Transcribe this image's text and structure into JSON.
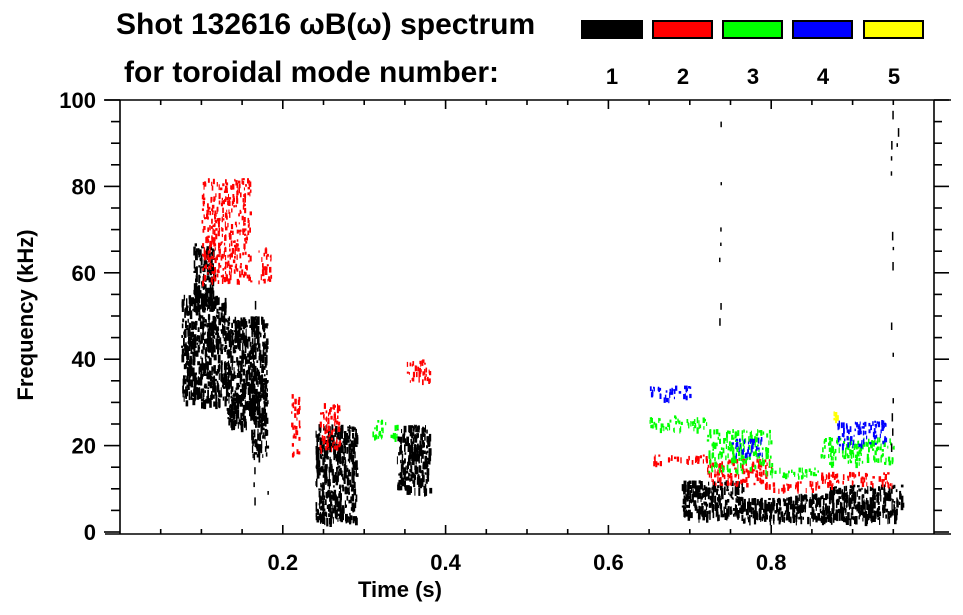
{
  "chart_data": {
    "type": "heatmap",
    "title": "Shot 132616 ωB(ω) spectrum",
    "subtitle": "for toroidal mode number:",
    "xlabel": "Time (s)",
    "ylabel": "Frequency (kHz)",
    "xlim": [
      0,
      1.0
    ],
    "ylim": [
      0,
      100
    ],
    "x_ticks": [
      0.2,
      0.4,
      0.6,
      0.8
    ],
    "x_tick_labels": [
      "0.2",
      "0.4",
      "0.6",
      "0.8"
    ],
    "x_minor_step": 0.05,
    "y_ticks": [
      0,
      20,
      40,
      60,
      80,
      100
    ],
    "y_tick_labels": [
      "0",
      "20",
      "40",
      "60",
      "80",
      "100"
    ],
    "y_minor_step": 5,
    "grid": false,
    "legend": {
      "placement": "top-right",
      "entries": [
        {
          "label": "1",
          "color": "#000000"
        },
        {
          "label": "2",
          "color": "#ff0000"
        },
        {
          "label": "3",
          "color": "#00ff00"
        },
        {
          "label": "4",
          "color": "#0000ff"
        },
        {
          "label": "5",
          "color": "#ffff00"
        }
      ]
    },
    "features": [
      {
        "mode": 1,
        "t0": 0.075,
        "t1": 0.13,
        "f0": 30,
        "f1": 55,
        "note": "broadband burst"
      },
      {
        "mode": 1,
        "t0": 0.09,
        "t1": 0.115,
        "f0": 52,
        "f1": 67
      },
      {
        "mode": 1,
        "t0": 0.13,
        "t1": 0.165,
        "f0": 25,
        "f1": 50
      },
      {
        "mode": 1,
        "t0": 0.16,
        "t1": 0.18,
        "f0": 18,
        "f1": 50
      },
      {
        "mode": 1,
        "t0": 0.24,
        "t1": 0.29,
        "f0": 3,
        "f1": 25
      },
      {
        "mode": 1,
        "t0": 0.34,
        "t1": 0.38,
        "f0": 10,
        "f1": 25
      },
      {
        "mode": 1,
        "t0": 0.69,
        "t1": 0.765,
        "f0": 4,
        "f1": 12
      },
      {
        "mode": 1,
        "t0": 0.765,
        "t1": 0.82,
        "f0": 3,
        "f1": 8
      },
      {
        "mode": 1,
        "t0": 0.82,
        "t1": 0.87,
        "f0": 3,
        "f1": 9
      },
      {
        "mode": 1,
        "t0": 0.87,
        "t1": 0.96,
        "f0": 3,
        "f1": 11
      },
      {
        "mode": 2,
        "t0": 0.1,
        "t1": 0.16,
        "f0": 58,
        "f1": 82
      },
      {
        "mode": 2,
        "t0": 0.17,
        "t1": 0.185,
        "f0": 58,
        "f1": 66
      },
      {
        "mode": 2,
        "t0": 0.21,
        "t1": 0.22,
        "f0": 18,
        "f1": 32
      },
      {
        "mode": 2,
        "t0": 0.245,
        "t1": 0.27,
        "f0": 19,
        "f1": 30
      },
      {
        "mode": 2,
        "t0": 0.35,
        "t1": 0.38,
        "f0": 35,
        "f1": 40
      },
      {
        "mode": 2,
        "t0": 0.655,
        "t1": 0.72,
        "f0": 16,
        "f1": 18
      },
      {
        "mode": 2,
        "t0": 0.72,
        "t1": 0.8,
        "f0": 11,
        "f1": 17
      },
      {
        "mode": 2,
        "t0": 0.8,
        "t1": 0.86,
        "f0": 10,
        "f1": 12
      },
      {
        "mode": 2,
        "t0": 0.86,
        "t1": 0.95,
        "f0": 11,
        "f1": 14
      },
      {
        "mode": 3,
        "t0": 0.31,
        "t1": 0.34,
        "f0": 22,
        "f1": 26
      },
      {
        "mode": 3,
        "t0": 0.65,
        "t1": 0.72,
        "f0": 24,
        "f1": 27
      },
      {
        "mode": 3,
        "t0": 0.72,
        "t1": 0.8,
        "f0": 14,
        "f1": 24
      },
      {
        "mode": 3,
        "t0": 0.8,
        "t1": 0.86,
        "f0": 13,
        "f1": 15
      },
      {
        "mode": 3,
        "t0": 0.86,
        "t1": 0.95,
        "f0": 16,
        "f1": 22
      },
      {
        "mode": 4,
        "t0": 0.65,
        "t1": 0.7,
        "f0": 31,
        "f1": 34
      },
      {
        "mode": 4,
        "t0": 0.75,
        "t1": 0.79,
        "f0": 18,
        "f1": 22
      },
      {
        "mode": 4,
        "t0": 0.88,
        "t1": 0.94,
        "f0": 20,
        "f1": 26
      },
      {
        "mode": 5,
        "t0": 0.875,
        "t1": 0.885,
        "f0": 26,
        "f1": 29
      }
    ]
  }
}
